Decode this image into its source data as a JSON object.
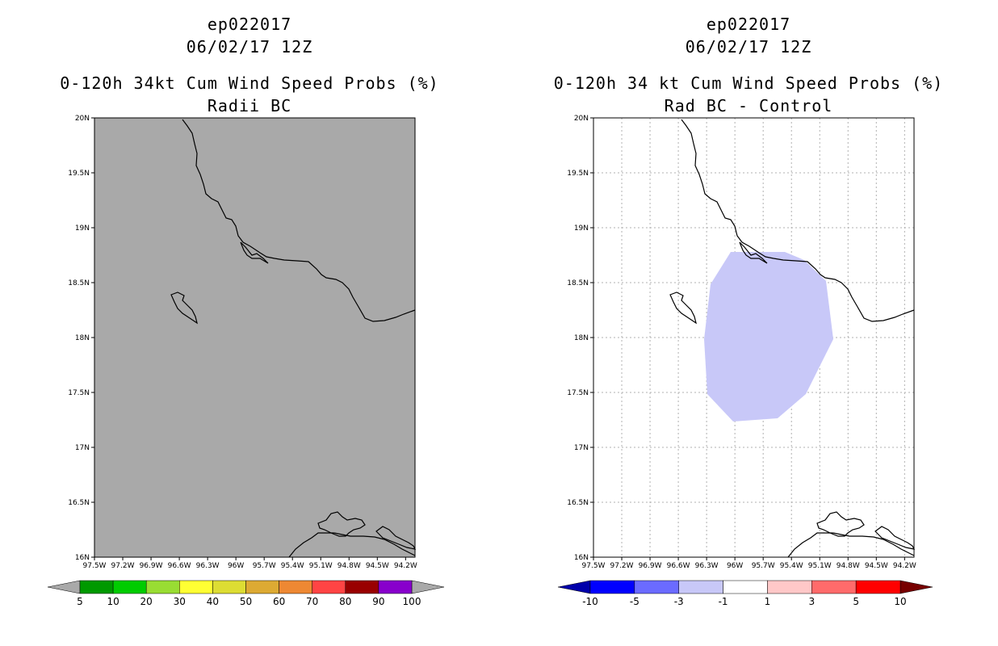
{
  "left": {
    "title_line1": "ep022017",
    "title_line2": "06/02/17 12Z",
    "title_line3": "0-120h 34kt Cum Wind Speed Probs (%)",
    "title_line4": "Radii BC",
    "map_fill": "#a9a9a9",
    "colorbar": {
      "colors": [
        "#009900",
        "#00cc00",
        "#99dd33",
        "#ffff33",
        "#dddd33",
        "#ddaa33",
        "#ee8833",
        "#ff4444",
        "#990000",
        "#8800cc"
      ],
      "end_color": "#a9a9a9",
      "labels": [
        "5",
        "10",
        "20",
        "30",
        "40",
        "50",
        "60",
        "70",
        "80",
        "90",
        "100"
      ]
    }
  },
  "right": {
    "title_line1": "ep022017",
    "title_line2": "06/02/17 12Z",
    "title_line3": "0-120h 34 kt Cum Wind Speed Probs (%)",
    "title_line4": "Rad BC - Control",
    "map_fill": "#ffffff",
    "anomaly_fill": "#c8c8f8",
    "colorbar": {
      "low_end_color": "#0000aa",
      "colors": [
        "#0000ff",
        "#6b6bff",
        "#c8c8f8",
        "#ffffff",
        "#ffc8c8",
        "#ff6b6b",
        "#ff0000"
      ],
      "high_end_color": "#770000",
      "labels": [
        "-10",
        "-5",
        "-3",
        "-1",
        "1",
        "3",
        "5",
        "10"
      ]
    }
  },
  "axes": {
    "lat_labels": [
      "20N",
      "19.5N",
      "19N",
      "18.5N",
      "18N",
      "17.5N",
      "17N",
      "16.5N",
      "16N"
    ],
    "lon_labels": [
      "97.5W",
      "97.2W",
      "96.9W",
      "96.6W",
      "96.3W",
      "96W",
      "95.7W",
      "95.4W",
      "95.1W",
      "94.8W",
      "94.5W",
      "94.2W"
    ],
    "lat_range": [
      16,
      20
    ],
    "lon_range": [
      -97.5,
      -94.1
    ]
  }
}
